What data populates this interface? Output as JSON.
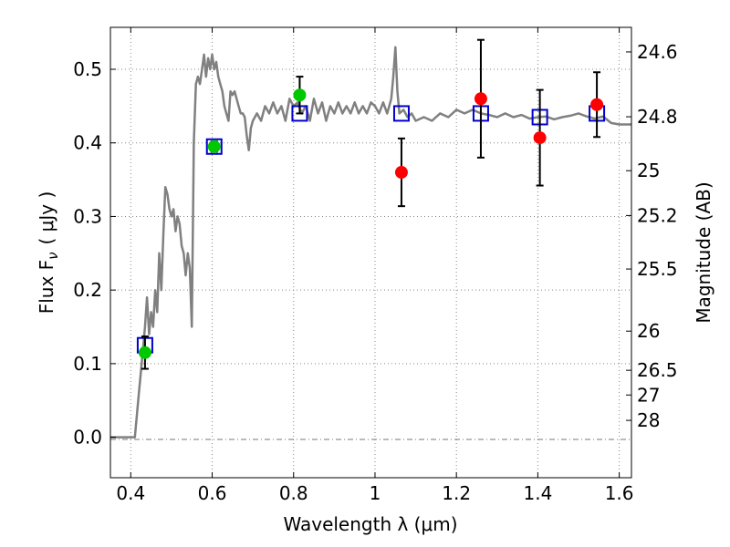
{
  "chart_data": {
    "type": "scatter",
    "title": "",
    "xlabel": "Wavelength  λ (μm)",
    "ylabel": "Flux  F",
    "ylabel_sub": "ν",
    "ylabel_unit": "( μJy )",
    "y2label": "Magnitude (AB)",
    "xlim": [
      0.35,
      1.63
    ],
    "ylim": [
      -0.055,
      0.557
    ],
    "grid": true,
    "legend": "none",
    "x_ticks": [
      0.4,
      0.6,
      0.8,
      1.0,
      1.2,
      1.4,
      1.6
    ],
    "x_tick_labels": [
      "0.4",
      "0.6",
      "0.8",
      "1",
      "1.2",
      "1.4",
      "1.6"
    ],
    "y_ticks": [
      0.0,
      0.1,
      0.2,
      0.3,
      0.4,
      0.5
    ],
    "y_tick_labels": [
      "0.0",
      "0.1",
      "0.2",
      "0.3",
      "0.4",
      "0.5"
    ],
    "y2_ticks": [
      {
        "label": "24.6",
        "flux": 0.5236
      },
      {
        "label": "24.8",
        "flux": 0.4355
      },
      {
        "label": "25",
        "flux": 0.3622
      },
      {
        "label": "25.2",
        "flux": 0.3013
      },
      {
        "label": "25.5",
        "flux": 0.2286
      },
      {
        "label": "26",
        "flux": 0.1442
      },
      {
        "label": "26.5",
        "flux": 0.091
      },
      {
        "label": "27",
        "flux": 0.0574
      },
      {
        "label": "28",
        "flux": 0.0229
      }
    ],
    "colors": {
      "model": "#808080",
      "model_photometry": "#0000cc",
      "green_points": "#00c800",
      "red_points": "#ff0000",
      "errorbar": "#000000",
      "grid": "#888888"
    },
    "series": [
      {
        "kind": "line",
        "points": [
          [
            0.35,
            0.0
          ],
          [
            0.4,
            0.0
          ],
          [
            0.41,
            0.0
          ],
          [
            0.415,
            0.03
          ],
          [
            0.42,
            0.06
          ],
          [
            0.425,
            0.09
          ],
          [
            0.43,
            0.12
          ],
          [
            0.435,
            0.15
          ],
          [
            0.44,
            0.19
          ],
          [
            0.445,
            0.14
          ],
          [
            0.45,
            0.17
          ],
          [
            0.455,
            0.15
          ],
          [
            0.46,
            0.2
          ],
          [
            0.465,
            0.17
          ],
          [
            0.47,
            0.25
          ],
          [
            0.475,
            0.2
          ],
          [
            0.48,
            0.275
          ],
          [
            0.485,
            0.34
          ],
          [
            0.49,
            0.33
          ],
          [
            0.495,
            0.31
          ],
          [
            0.5,
            0.3
          ],
          [
            0.505,
            0.31
          ],
          [
            0.51,
            0.28
          ],
          [
            0.515,
            0.3
          ],
          [
            0.52,
            0.29
          ],
          [
            0.525,
            0.26
          ],
          [
            0.53,
            0.25
          ],
          [
            0.535,
            0.22
          ],
          [
            0.54,
            0.25
          ],
          [
            0.545,
            0.23
          ],
          [
            0.55,
            0.15
          ],
          [
            0.555,
            0.4
          ],
          [
            0.56,
            0.48
          ],
          [
            0.565,
            0.49
          ],
          [
            0.57,
            0.48
          ],
          [
            0.575,
            0.5
          ],
          [
            0.58,
            0.52
          ],
          [
            0.585,
            0.49
          ],
          [
            0.59,
            0.515
          ],
          [
            0.595,
            0.5
          ],
          [
            0.6,
            0.52
          ],
          [
            0.605,
            0.5
          ],
          [
            0.61,
            0.51
          ],
          [
            0.615,
            0.49
          ],
          [
            0.62,
            0.48
          ],
          [
            0.625,
            0.47
          ],
          [
            0.63,
            0.45
          ],
          [
            0.635,
            0.44
          ],
          [
            0.64,
            0.43
          ],
          [
            0.645,
            0.47
          ],
          [
            0.65,
            0.465
          ],
          [
            0.655,
            0.47
          ],
          [
            0.66,
            0.46
          ],
          [
            0.665,
            0.45
          ],
          [
            0.67,
            0.44
          ],
          [
            0.675,
            0.44
          ],
          [
            0.68,
            0.435
          ],
          [
            0.685,
            0.41
          ],
          [
            0.69,
            0.39
          ],
          [
            0.695,
            0.42
          ],
          [
            0.7,
            0.43
          ],
          [
            0.71,
            0.44
          ],
          [
            0.72,
            0.43
          ],
          [
            0.73,
            0.45
          ],
          [
            0.74,
            0.44
          ],
          [
            0.75,
            0.455
          ],
          [
            0.76,
            0.44
          ],
          [
            0.77,
            0.45
          ],
          [
            0.78,
            0.43
          ],
          [
            0.79,
            0.46
          ],
          [
            0.8,
            0.45
          ],
          [
            0.81,
            0.455
          ],
          [
            0.82,
            0.44
          ],
          [
            0.83,
            0.45
          ],
          [
            0.84,
            0.43
          ],
          [
            0.85,
            0.46
          ],
          [
            0.86,
            0.44
          ],
          [
            0.87,
            0.455
          ],
          [
            0.88,
            0.43
          ],
          [
            0.89,
            0.45
          ],
          [
            0.9,
            0.44
          ],
          [
            0.91,
            0.455
          ],
          [
            0.92,
            0.44
          ],
          [
            0.93,
            0.45
          ],
          [
            0.94,
            0.44
          ],
          [
            0.95,
            0.455
          ],
          [
            0.96,
            0.44
          ],
          [
            0.97,
            0.45
          ],
          [
            0.98,
            0.44
          ],
          [
            0.99,
            0.455
          ],
          [
            1.0,
            0.45
          ],
          [
            1.01,
            0.44
          ],
          [
            1.02,
            0.455
          ],
          [
            1.03,
            0.44
          ],
          [
            1.04,
            0.46
          ],
          [
            1.045,
            0.49
          ],
          [
            1.05,
            0.53
          ],
          [
            1.055,
            0.47
          ],
          [
            1.06,
            0.44
          ],
          [
            1.07,
            0.445
          ],
          [
            1.08,
            0.435
          ],
          [
            1.09,
            0.44
          ],
          [
            1.1,
            0.43
          ],
          [
            1.12,
            0.435
          ],
          [
            1.14,
            0.43
          ],
          [
            1.16,
            0.44
          ],
          [
            1.18,
            0.435
          ],
          [
            1.2,
            0.445
          ],
          [
            1.22,
            0.44
          ],
          [
            1.24,
            0.445
          ],
          [
            1.26,
            0.44
          ],
          [
            1.28,
            0.438
          ],
          [
            1.3,
            0.435
          ],
          [
            1.32,
            0.44
          ],
          [
            1.34,
            0.435
          ],
          [
            1.36,
            0.438
          ],
          [
            1.38,
            0.433
          ],
          [
            1.4,
            0.435
          ],
          [
            1.42,
            0.436
          ],
          [
            1.44,
            0.432
          ],
          [
            1.46,
            0.435
          ],
          [
            1.48,
            0.437
          ],
          [
            1.5,
            0.44
          ],
          [
            1.52,
            0.436
          ],
          [
            1.54,
            0.433
          ],
          [
            1.56,
            0.436
          ],
          [
            1.58,
            0.427
          ],
          [
            1.6,
            0.425
          ],
          [
            1.63,
            0.425
          ]
        ]
      },
      {
        "kind": "open-square",
        "points": [
          [
            0.435,
            0.125
          ],
          [
            0.605,
            0.395
          ],
          [
            0.815,
            0.44
          ],
          [
            1.065,
            0.44
          ],
          [
            1.26,
            0.44
          ],
          [
            1.405,
            0.435
          ],
          [
            1.545,
            0.44
          ]
        ]
      },
      {
        "kind": "green-circle",
        "points": [
          {
            "x": 0.435,
            "y": 0.115,
            "err": 0.022
          },
          {
            "x": 0.605,
            "y": 0.395,
            "err": 0.007
          },
          {
            "x": 0.815,
            "y": 0.465,
            "err": 0.025
          }
        ]
      },
      {
        "kind": "red-circle",
        "points": [
          {
            "x": 1.065,
            "y": 0.36,
            "err": 0.046
          },
          {
            "x": 1.26,
            "y": 0.46,
            "err": 0.08
          },
          {
            "x": 1.405,
            "y": 0.407,
            "err": 0.065
          },
          {
            "x": 1.545,
            "y": 0.452,
            "err": 0.044
          }
        ]
      }
    ]
  }
}
